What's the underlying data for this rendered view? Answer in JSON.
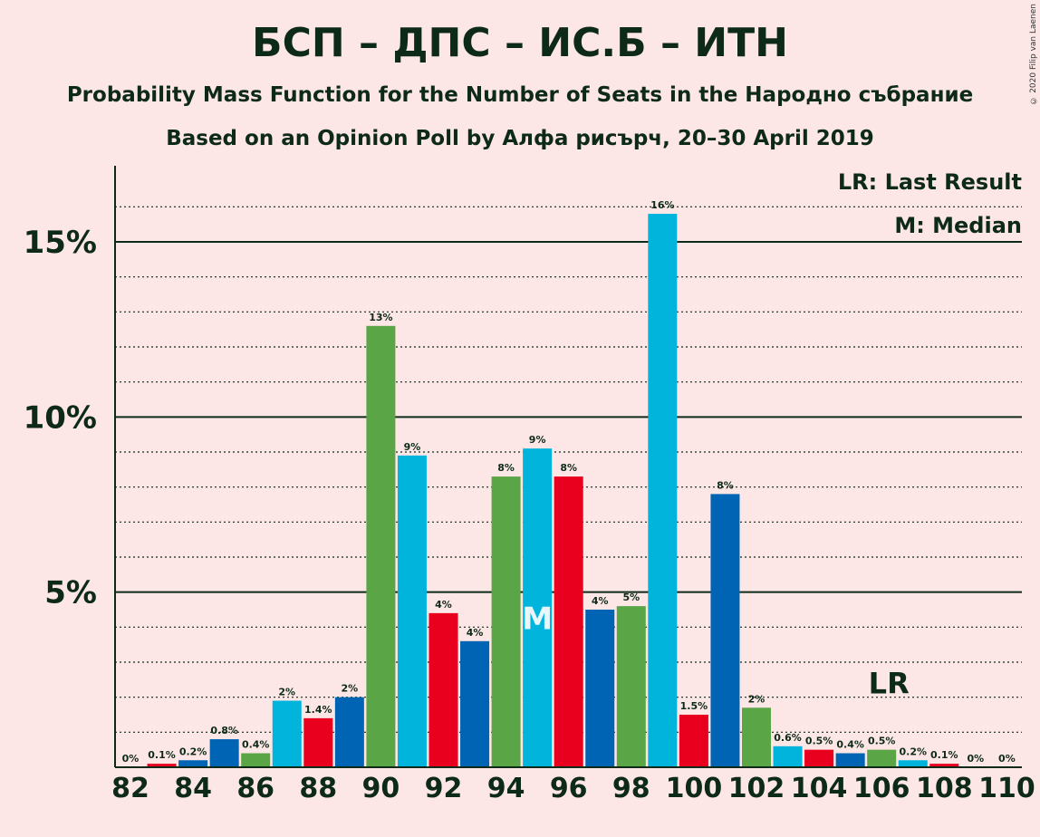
{
  "title": "БСП – ДПС – ИС.Б – ИТН",
  "subtitle": "Probability Mass Function for the Number of Seats in the Народно събрание",
  "subtitle2": "Based on an Opinion Poll by Алфа рисърч, 20–30 April 2019",
  "copyright": "© 2020 Filip van Laenen",
  "legend": {
    "lr": "LR: Last Result",
    "median": "M: Median"
  },
  "colors": {
    "blue": "#0064b4",
    "red": "#e8001e",
    "green": "#5aa546",
    "cyan": "#00b4dc",
    "background": "#fde6e6",
    "ink": "#0d2a18"
  },
  "chart_data": {
    "type": "bar",
    "x": [
      82,
      83,
      84,
      85,
      86,
      87,
      88,
      89,
      90,
      91,
      92,
      93,
      94,
      95,
      96,
      97,
      98,
      99,
      100,
      101,
      102,
      103,
      104,
      105,
      106,
      107,
      108,
      109,
      110
    ],
    "values": [
      0,
      0.1,
      0.2,
      0.8,
      0.4,
      1.9,
      1.4,
      2.0,
      12.6,
      8.9,
      4.4,
      3.6,
      8.3,
      9.1,
      8.3,
      4.5,
      4.6,
      15.8,
      1.5,
      7.8,
      1.7,
      0.6,
      0.5,
      0.4,
      0.5,
      0.2,
      0.1,
      0,
      0
    ],
    "labels": [
      "0%",
      "0.1%",
      "0.2%",
      "0.8%",
      "0.4%",
      "2%",
      "1.4%",
      "2%",
      "13%",
      "9%",
      "4%",
      "4%",
      "8%",
      "9%",
      "8%",
      "4%",
      "5%",
      "16%",
      "1.5%",
      "8%",
      "2%",
      "0.6%",
      "0.5%",
      "0.4%",
      "0.5%",
      "0.2%",
      "0.1%",
      "0%",
      "0%"
    ],
    "bar_colors": [
      "blue",
      "red",
      "blue",
      "blue",
      "green",
      "cyan",
      "red",
      "blue",
      "green",
      "cyan",
      "red",
      "blue",
      "green",
      "cyan",
      "red",
      "blue",
      "green",
      "cyan",
      "red",
      "blue",
      "green",
      "cyan",
      "red",
      "blue",
      "green",
      "cyan",
      "red",
      "blue",
      "green"
    ],
    "x_ticks": [
      "82",
      "84",
      "86",
      "88",
      "90",
      "92",
      "94",
      "96",
      "98",
      "100",
      "102",
      "104",
      "106",
      "108",
      "110"
    ],
    "y_ticks": [
      "5%",
      "10%",
      "15%"
    ],
    "y_tick_values": [
      5,
      10,
      15
    ],
    "ylim": [
      0,
      17.2
    ],
    "median_seat": 95,
    "median_marker": "M",
    "last_result_seat": 106,
    "last_result_marker": "LR",
    "unit": "%"
  }
}
